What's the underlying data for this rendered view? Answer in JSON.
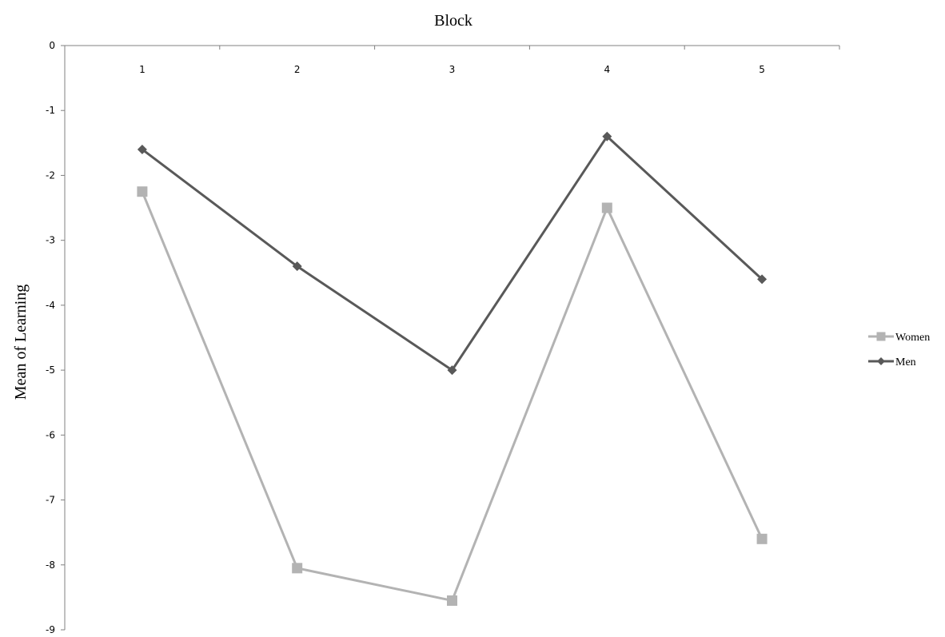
{
  "chart_data": {
    "type": "line",
    "title": "",
    "xlabel": "Block",
    "ylabel": "Mean of Learning",
    "categories": [
      "1",
      "2",
      "3",
      "4",
      "5"
    ],
    "ylim": [
      -9,
      0
    ],
    "yticks": [
      "0",
      "-1",
      "-2",
      "-3",
      "-4",
      "-5",
      "-6",
      "-7",
      "-8",
      "-9"
    ],
    "xaxis_position": "top",
    "grid": false,
    "legend_position": "right",
    "series": [
      {
        "name": "Women",
        "values": [
          -2.25,
          -8.05,
          -8.55,
          -2.5,
          -7.6
        ],
        "color": "#b3b3b3",
        "marker": "square"
      },
      {
        "name": "Men",
        "values": [
          -1.6,
          -3.4,
          -5.0,
          -1.4,
          -3.6
        ],
        "color": "#595959",
        "marker": "diamond"
      }
    ]
  }
}
